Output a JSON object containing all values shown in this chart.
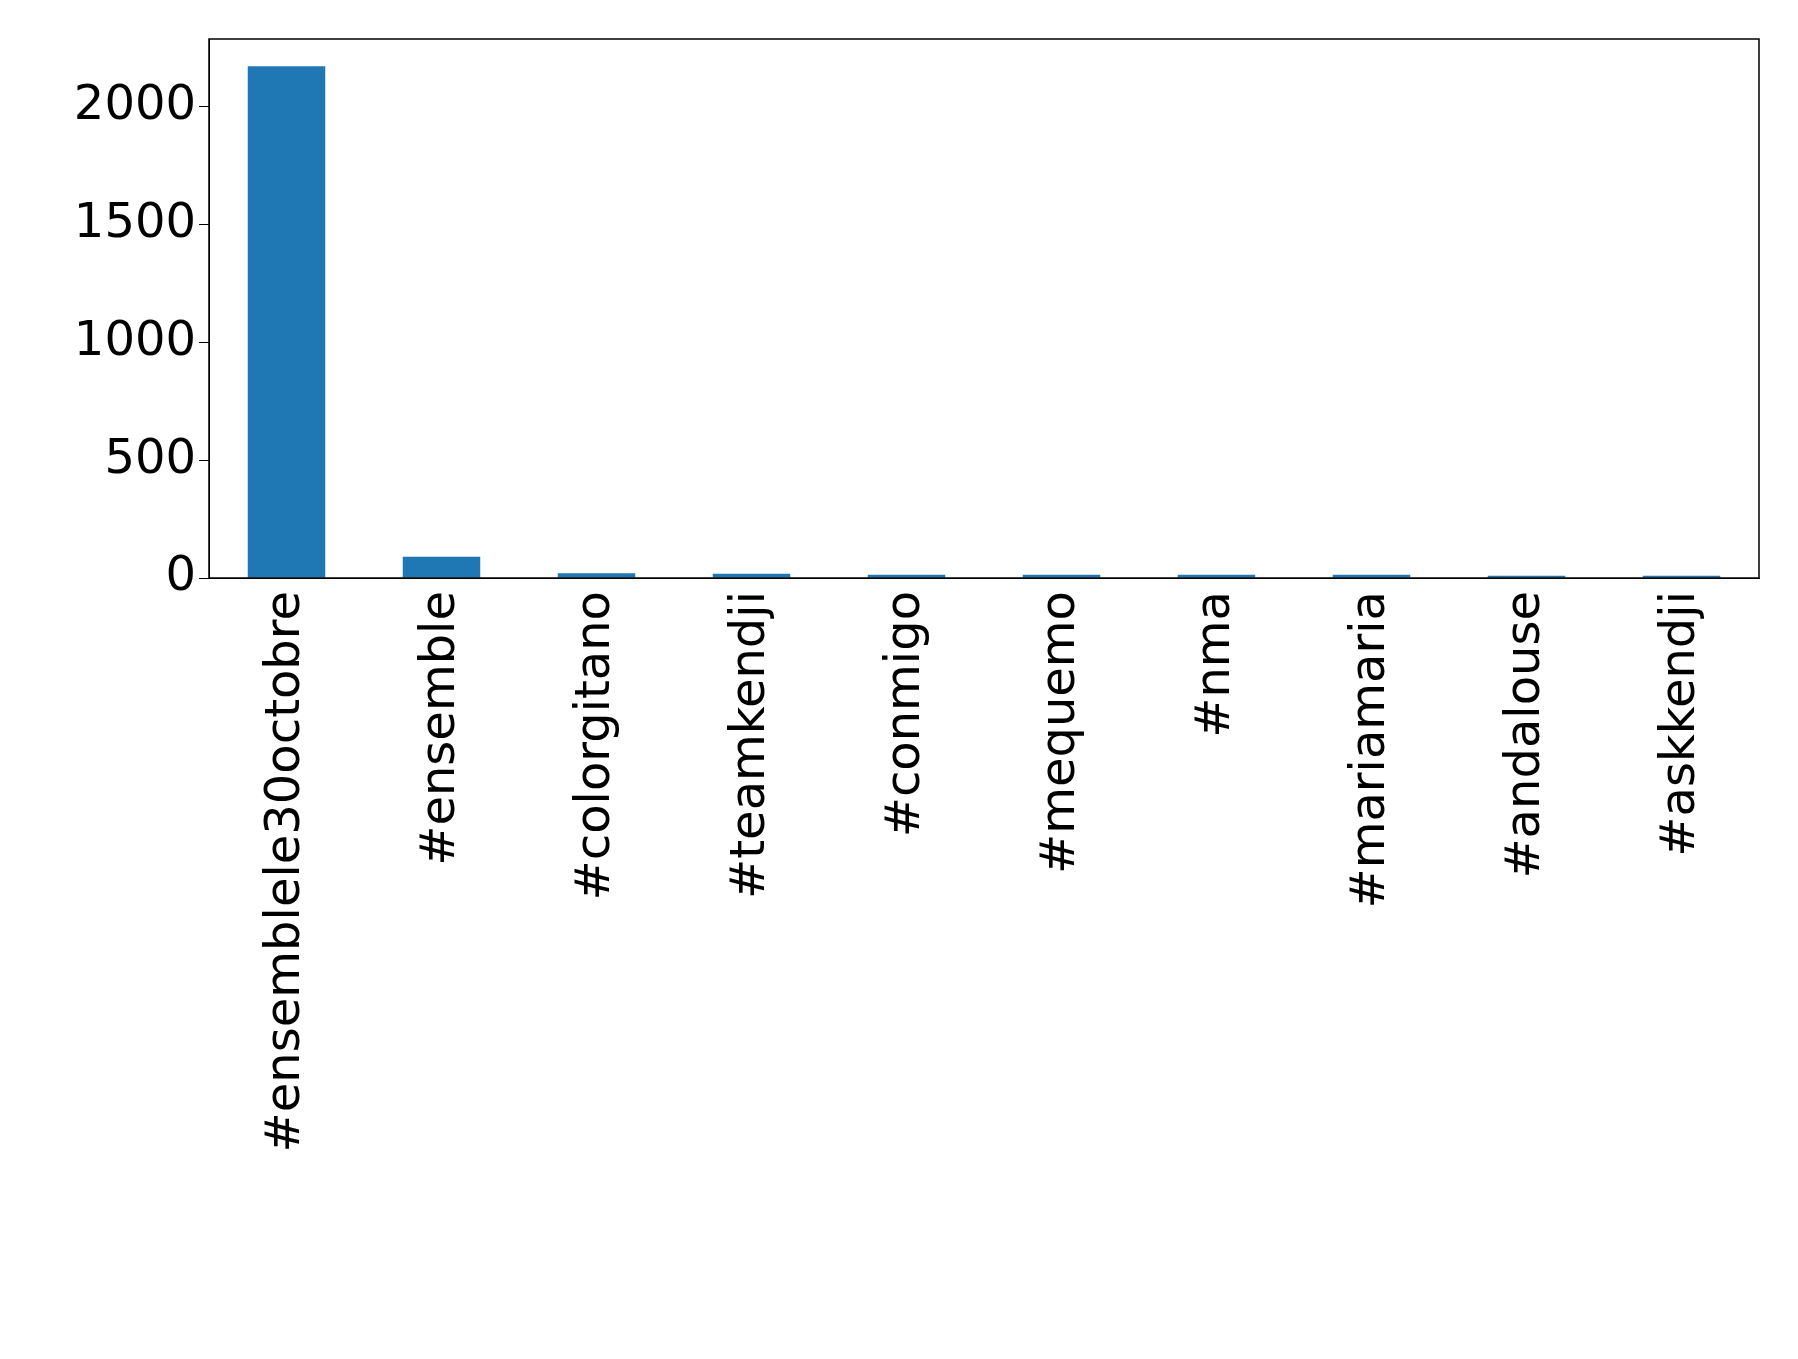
{
  "chart_data": {
    "type": "bar",
    "categories": [
      "#ensemblele30octobre",
      "#ensemble",
      "#colorgitano",
      "#teamkendji",
      "#conmigo",
      "#mequemo",
      "#nma",
      "#mariamaria",
      "#andalouse",
      "#askkendji"
    ],
    "values": [
      2170,
      90,
      20,
      18,
      14,
      14,
      14,
      14,
      10,
      10
    ],
    "color": "#1f77b4",
    "ylim": [
      0,
      2285
    ],
    "yticks": [
      0,
      500,
      1000,
      1500,
      2000
    ],
    "grid": false,
    "legend": false
  }
}
